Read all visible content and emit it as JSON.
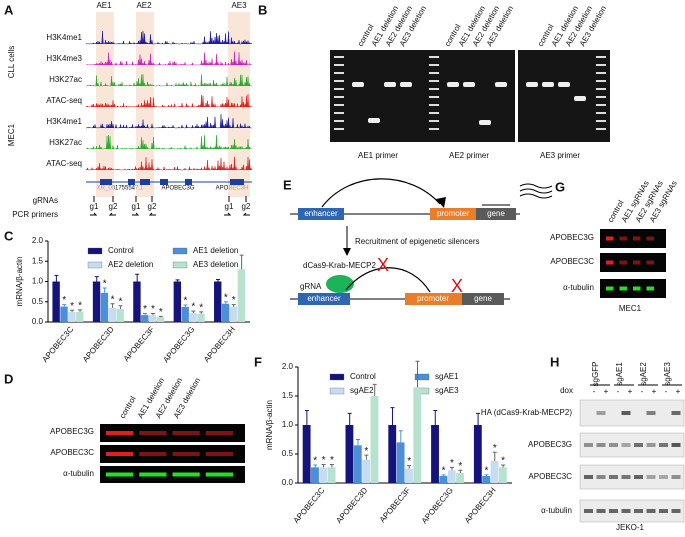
{
  "panel_a": {
    "letter": "A",
    "regions": [
      "AE1",
      "AE2",
      "AE3"
    ],
    "groups": [
      "CLL cells",
      "MEC1"
    ],
    "tracks": [
      {
        "name": "H3K4me1",
        "color": "#1a1a9c"
      },
      {
        "name": "H3K4me3",
        "color": "#cc22bb"
      },
      {
        "name": "H3K27ac",
        "color": "#2aa82a"
      },
      {
        "name": "ATAC-seq",
        "color": "#dd2222"
      },
      {
        "name": "H3K4me1",
        "color": "#1a1a9c"
      },
      {
        "name": "H3K27ac",
        "color": "#2aa82a"
      },
      {
        "name": "ATAC-seq",
        "color": "#dd2222"
      }
    ],
    "genes": [
      "XR_001755547.1",
      "APOBEC3G",
      "APOBEC3H"
    ],
    "grnas_label": "gRNAs",
    "grnas": [
      "g1",
      "g2",
      "g1",
      "g2",
      "g1",
      "g2"
    ],
    "primers_label": "PCR primers"
  },
  "panel_b": {
    "letter": "B",
    "lanes": [
      "control",
      "AE1 deletion",
      "AE2 deletion",
      "AE3 deletion"
    ],
    "gels": [
      "AE1 primer",
      "AE2 primer",
      "AE3 primer"
    ]
  },
  "panel_d": {
    "letter": "D",
    "lanes": [
      "control",
      "AE1 deletion",
      "AE2 deletion",
      "AE3 deletion"
    ],
    "rows": [
      "APOBEC3G",
      "APOBEC3C",
      "α-tubulin"
    ]
  },
  "panel_e": {
    "letter": "E",
    "enhancer": "enhancer",
    "promoter": "promoter",
    "gene": "gene",
    "recruitment": "Recruitment of epigenetic silencers",
    "dcas9": "dCas9-Krab-MECP2",
    "grna": "gRNA",
    "x_mark": "X"
  },
  "panel_g": {
    "letter": "G",
    "lanes": [
      "control",
      "AE1 sgRNAs",
      "AE2 sgRNAs",
      "AE3 sgRNAs"
    ],
    "rows": [
      "APOBEC3G",
      "APOBEC3C",
      "α-tubulin"
    ],
    "cell_line": "MEC1"
  },
  "panel_h": {
    "letter": "H",
    "groups": [
      "sgGFP",
      "sgAE1",
      "sgAE2",
      "sgAE3"
    ],
    "dox_label": "dox",
    "dox": [
      "-",
      "+"
    ],
    "rows": [
      "HA (dCas9-Krab-MECP2)",
      "APOBEC3G",
      "APOBEC3C",
      "α-tubulin"
    ],
    "cell_line": "JEKO-1"
  },
  "chart_data": [
    {
      "type": "bar",
      "letter": "C",
      "y_label": "mRNA/β-actin",
      "categories": [
        "APOBEC3C",
        "APOBEC3D",
        "APOBEC3F",
        "APOBEC3G",
        "APOBEC3H"
      ],
      "ylim": [
        0,
        2
      ],
      "yticks": [
        {
          "value": 0,
          "label": "0.0"
        },
        {
          "value": 0.5,
          "label": "0.5"
        },
        {
          "value": 1,
          "label": "1.0"
        },
        {
          "value": 1.5,
          "label": "1.5"
        },
        {
          "value": 2,
          "label": "2.0"
        }
      ],
      "legend": "top",
      "series": [
        {
          "name": "Control",
          "color": "#14147a",
          "values": [
            1.0,
            1.0,
            1.0,
            1.0,
            1.0
          ],
          "errors": [
            0.15,
            0.12,
            0.18,
            0.04,
            0.05
          ],
          "significance": [
            null,
            null,
            null,
            null,
            null
          ]
        },
        {
          "name": "AE1 deletion",
          "color": "#4a8fd8",
          "values": [
            0.38,
            0.72,
            0.17,
            0.37,
            0.45
          ],
          "errors": [
            0.05,
            0.12,
            0.04,
            0.05,
            0.05
          ],
          "significance": [
            "*",
            "*",
            "*",
            "*",
            "*"
          ]
        },
        {
          "name": "AE2 deletion",
          "color": "#c6dcf2",
          "values": [
            0.25,
            0.35,
            0.17,
            0.22,
            0.38
          ],
          "errors": [
            0.04,
            0.1,
            0.04,
            0.05,
            0.05
          ],
          "significance": [
            "*",
            "*",
            "*",
            "*",
            "*"
          ]
        },
        {
          "name": "AE3 deletion",
          "color": "#b6e2cf",
          "values": [
            0.25,
            0.32,
            0.12,
            0.2,
            1.3
          ],
          "errors": [
            0.05,
            0.08,
            0.02,
            0.05,
            0.35
          ],
          "significance": [
            "*",
            "*",
            "*",
            "*",
            null
          ]
        }
      ]
    },
    {
      "type": "bar",
      "letter": "F",
      "y_label": "mRNA/β-actin",
      "categories": [
        "APOBEC3C",
        "APOBEC3D",
        "APOBEC3F",
        "APOBEC3G",
        "APOBEC3H"
      ],
      "ylim": [
        0,
        2
      ],
      "yticks": [
        {
          "value": 0,
          "label": "0.0"
        },
        {
          "value": 0.5,
          "label": "0.5"
        },
        {
          "value": 1,
          "label": "1.0"
        },
        {
          "value": 1.5,
          "label": "1.5"
        },
        {
          "value": 2,
          "label": "2.0"
        }
      ],
      "legend": "top",
      "series": [
        {
          "name": "Control",
          "color": "#14147a",
          "values": [
            1.0,
            1.0,
            1.0,
            1.0,
            1.0
          ],
          "errors": [
            0.25,
            0.2,
            0.3,
            0.25,
            0.2
          ],
          "significance": [
            null,
            null,
            null,
            null,
            null
          ]
        },
        {
          "name": "sgAE1",
          "color": "#4a8fd8",
          "values": [
            0.27,
            0.65,
            0.7,
            0.12,
            0.12
          ],
          "errors": [
            0.04,
            0.1,
            0.2,
            0.02,
            0.02
          ],
          "significance": [
            "*",
            null,
            null,
            "*",
            "*"
          ]
        },
        {
          "name": "sgAE2",
          "color": "#c6dcf2",
          "values": [
            0.27,
            0.4,
            0.25,
            0.22,
            0.38
          ],
          "errors": [
            0.05,
            0.08,
            0.05,
            0.05,
            0.15
          ],
          "significance": [
            "*",
            "*",
            "*",
            "*",
            "*"
          ]
        },
        {
          "name": "sgAE3",
          "color": "#b6e2cf",
          "values": [
            0.27,
            1.5,
            1.65,
            0.17,
            0.27
          ],
          "errors": [
            0.05,
            0.2,
            0.45,
            0.05,
            0.04
          ],
          "significance": [
            "*",
            null,
            null,
            "*",
            "*"
          ]
        }
      ]
    }
  ]
}
